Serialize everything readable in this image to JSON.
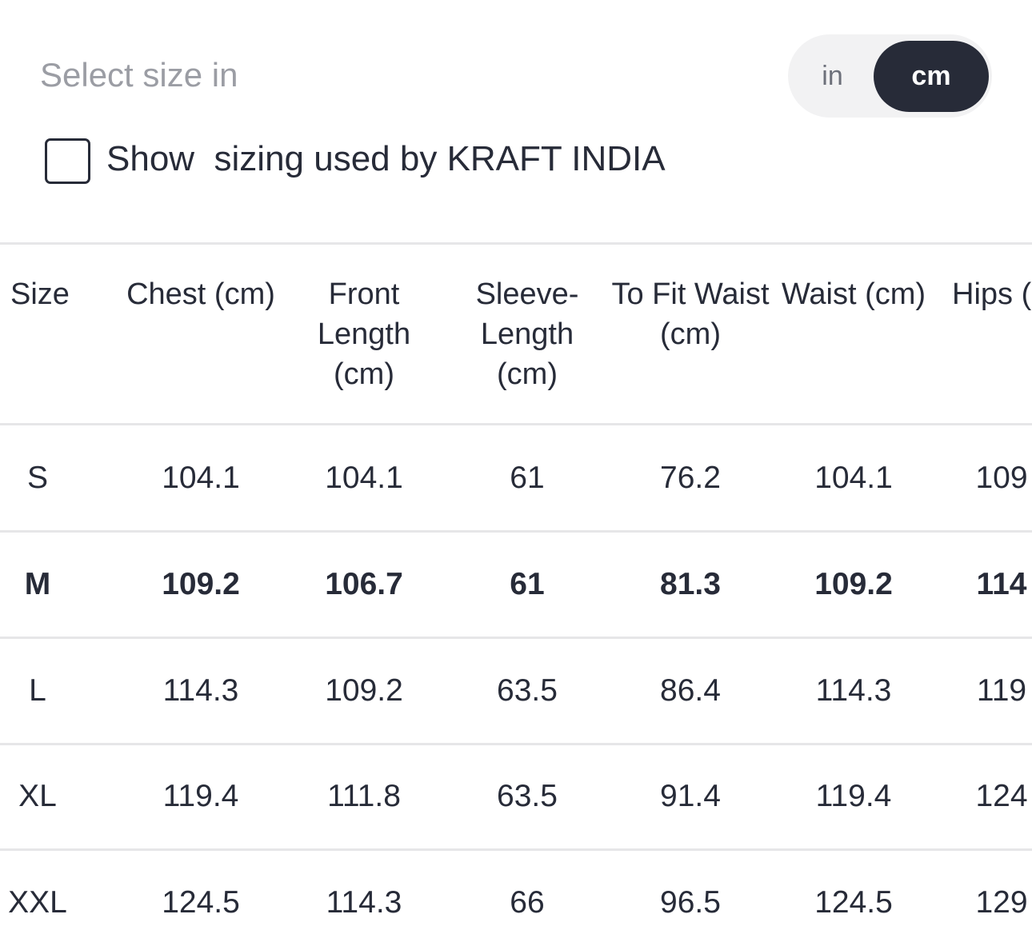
{
  "header": {
    "title": "Select size in",
    "unit_toggle": {
      "options": [
        "in",
        "cm"
      ],
      "selected_index": 1
    }
  },
  "checkbox": {
    "label": "Show  sizing used by KRAFT INDIA",
    "checked": false
  },
  "table": {
    "columns": [
      "Size",
      "Chest (cm)",
      "Front Length (cm)",
      "Sleeve-Length (cm)",
      "To Fit Waist (cm)",
      "Waist (cm)",
      "Hips ("
    ],
    "rows": [
      [
        "S",
        "104.1",
        "104.1",
        "61",
        "76.2",
        "104.1",
        "109"
      ],
      [
        "M",
        "109.2",
        "106.7",
        "61",
        "81.3",
        "109.2",
        "114"
      ],
      [
        "L",
        "114.3",
        "109.2",
        "63.5",
        "86.4",
        "114.3",
        "119"
      ],
      [
        "XL",
        "119.4",
        "111.8",
        "63.5",
        "91.4",
        "119.4",
        "124"
      ],
      [
        "XXL",
        "124.5",
        "114.3",
        "66",
        "96.5",
        "124.5",
        "129"
      ]
    ],
    "highlighted_row": 1
  }
}
